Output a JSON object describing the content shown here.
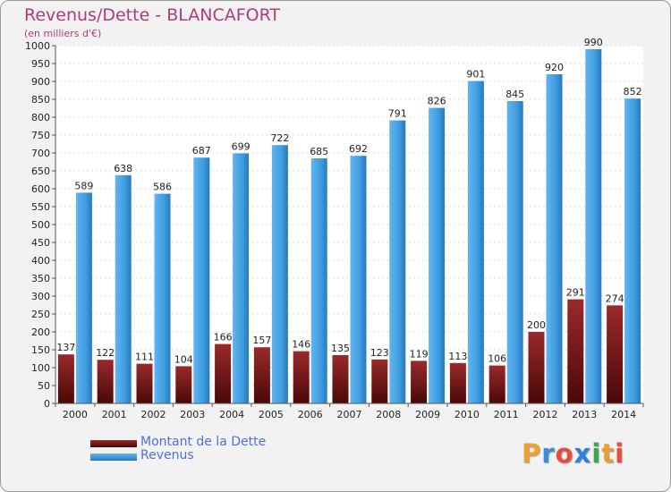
{
  "header": {
    "title": "Revenus/Dette - BLANCAFORT",
    "subtitle": "(en milliers d'€)"
  },
  "colors": {
    "dette": "#6e0d0d",
    "revenus": "#3d9de0",
    "title": "#b23a7a",
    "legend_text": "#4e6edc"
  },
  "chart_data": {
    "type": "bar",
    "title": "Revenus/Dette - BLANCAFORT",
    "subtitle": "(en milliers d'€)",
    "categories": [
      "2000",
      "2001",
      "2002",
      "2003",
      "2004",
      "2005",
      "2006",
      "2007",
      "2008",
      "2009",
      "2010",
      "2011",
      "2012",
      "2013",
      "2014"
    ],
    "series": [
      {
        "name": "Montant de la Dette",
        "color": "#6e0d0d",
        "values": [
          137,
          122,
          111,
          104,
          166,
          157,
          146,
          135,
          123,
          119,
          113,
          106,
          200,
          291,
          274
        ]
      },
      {
        "name": "Revenus",
        "color": "#3d9de0",
        "values": [
          589,
          638,
          586,
          687,
          699,
          722,
          685,
          692,
          791,
          826,
          901,
          845,
          920,
          990,
          852
        ]
      }
    ],
    "ylim": [
      0,
      1000
    ],
    "ytick_step": 50,
    "grid": true,
    "legend_position": "bottom-left"
  },
  "legend": {
    "items": [
      {
        "label": "Montant de la Dette",
        "icon": "dark-red-bar-swatch"
      },
      {
        "label": "Revenus",
        "icon": "blue-bar-swatch"
      }
    ]
  },
  "logo": {
    "letters": [
      "P",
      "r",
      "o",
      "x",
      "i",
      "t",
      "i"
    ],
    "colors": [
      "#f0a030",
      "#3a8de0",
      "#e94b3c",
      "#2f7fe0",
      "#3aa84a",
      "#f09a30",
      "#e94b3c"
    ]
  }
}
